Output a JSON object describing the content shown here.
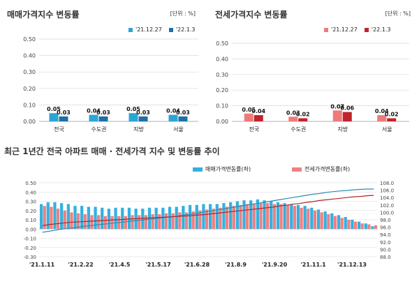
{
  "panels": {
    "sale": {
      "title": "매매가격지수 변동률",
      "unit": "[단위 : %]"
    },
    "jeonse": {
      "title": "전세가격지수 변동률",
      "unit": "[단위 : %]"
    },
    "trend": {
      "title": "최근 1년간 전국 아파트 매매 · 전세가격 지수 및 변동률 추이"
    }
  },
  "colors": {
    "sale_prev": "#2aa6d6",
    "sale_cur": "#1f6fa8",
    "jeonse_prev": "#f07a7a",
    "jeonse_cur": "#c0232a",
    "trend_sale_bar": "#33b1e0",
    "trend_jeonse_bar": "#f08080",
    "trend_sale_line": "#2a8cb0",
    "trend_jeonse_line": "#b02525",
    "grid": "#d8d8d8",
    "axis": "#999999",
    "text": "#222222"
  },
  "chart_data": [
    {
      "type": "bar",
      "categories": [
        "전국",
        "수도권",
        "지방",
        "서울"
      ],
      "series": [
        {
          "name": "'21.12.27",
          "values": [
            0.05,
            0.04,
            0.05,
            0.04
          ]
        },
        {
          "name": "'22.1.3",
          "values": [
            0.03,
            0.03,
            0.03,
            0.03
          ]
        }
      ],
      "value_labels": [
        [
          "0.05",
          "0.04",
          "0.05",
          "0.04"
        ],
        [
          "0.03",
          "0.03",
          "0.03",
          "0.03"
        ]
      ],
      "ylim": [
        0,
        0.5
      ],
      "yticks": [
        "0.00",
        "0.10",
        "0.20",
        "0.30",
        "0.40",
        "0.50"
      ]
    },
    {
      "type": "bar",
      "categories": [
        "전국",
        "수도권",
        "지방",
        "서울"
      ],
      "series": [
        {
          "name": "'21.12.27",
          "values": [
            0.05,
            0.03,
            0.07,
            0.04
          ]
        },
        {
          "name": "'22.1.3",
          "values": [
            0.04,
            0.02,
            0.06,
            0.02
          ]
        }
      ],
      "value_labels": [
        [
          "0.05",
          "0.03",
          "0.07",
          "0.04"
        ],
        [
          "0.04",
          "0.02",
          "0.06",
          "0.02"
        ]
      ],
      "ylim": [
        0,
        0.5
      ],
      "yticks": [
        "0.00",
        "0.10",
        "0.20",
        "0.30",
        "0.40",
        "0.50"
      ]
    },
    {
      "type": "bar",
      "x_ticks": [
        "'21.1.11",
        "'21.2.22",
        "'21.4.5",
        "'21.5.17",
        "'21.6.28",
        "'21.8.9",
        "'21.9.20",
        "'21.11.1",
        "'21.12.13"
      ],
      "series": [
        {
          "name": "매매가격변동률(좌)",
          "axis": "left",
          "values": [
            0.27,
            0.29,
            0.29,
            0.28,
            0.27,
            0.25,
            0.25,
            0.24,
            0.24,
            0.23,
            0.22,
            0.23,
            0.23,
            0.23,
            0.22,
            0.22,
            0.23,
            0.23,
            0.23,
            0.24,
            0.24,
            0.25,
            0.26,
            0.26,
            0.27,
            0.27,
            0.27,
            0.28,
            0.29,
            0.3,
            0.31,
            0.31,
            0.32,
            0.31,
            0.3,
            0.29,
            0.28,
            0.27,
            0.26,
            0.25,
            0.23,
            0.21,
            0.19,
            0.17,
            0.15,
            0.13,
            0.1,
            0.08,
            0.06,
            0.03
          ]
        },
        {
          "name": "전세가격변동률(좌)",
          "axis": "left",
          "values": [
            0.25,
            0.24,
            0.22,
            0.2,
            0.18,
            0.17,
            0.16,
            0.15,
            0.15,
            0.14,
            0.14,
            0.14,
            0.14,
            0.15,
            0.15,
            0.15,
            0.16,
            0.16,
            0.17,
            0.17,
            0.18,
            0.18,
            0.19,
            0.2,
            0.21,
            0.22,
            0.23,
            0.24,
            0.25,
            0.26,
            0.27,
            0.27,
            0.28,
            0.28,
            0.27,
            0.27,
            0.26,
            0.25,
            0.23,
            0.22,
            0.2,
            0.18,
            0.16,
            0.14,
            0.12,
            0.1,
            0.08,
            0.06,
            0.05,
            0.04
          ]
        },
        {
          "name": "sale_index",
          "axis": "right",
          "type": "line",
          "values": [
            94.6,
            94.9,
            95.2,
            95.5,
            95.7,
            95.9,
            96.2,
            96.4,
            96.6,
            96.8,
            97.0,
            97.2,
            97.4,
            97.6,
            97.8,
            98.0,
            98.2,
            98.4,
            98.6,
            98.8,
            99.0,
            99.3,
            99.5,
            99.8,
            100.1,
            100.4,
            100.7,
            101.0,
            101.3,
            101.6,
            101.9,
            102.2,
            102.5,
            102.8,
            103.1,
            103.4,
            103.7,
            104.0,
            104.3,
            104.6,
            104.9,
            105.1,
            105.4,
            105.6,
            105.8,
            105.9,
            106.1,
            106.2,
            106.3,
            106.3
          ]
        },
        {
          "name": "jeonse_index",
          "axis": "right",
          "type": "line",
          "values": [
            96.4,
            96.7,
            96.9,
            97.1,
            97.3,
            97.4,
            97.5,
            97.6,
            97.7,
            97.8,
            97.9,
            98.0,
            98.1,
            98.2,
            98.3,
            98.4,
            98.5,
            98.6,
            98.7,
            98.8,
            98.9,
            99.0,
            99.1,
            99.3,
            99.4,
            99.6,
            99.8,
            100.0,
            100.2,
            100.4,
            100.6,
            100.8,
            101.0,
            101.2,
            101.4,
            101.7,
            101.9,
            102.2,
            102.4,
            102.7,
            102.9,
            103.2,
            103.4,
            103.6,
            103.8,
            104.0,
            104.2,
            104.3,
            104.5,
            104.6
          ]
        }
      ],
      "ylim_left": [
        -0.3,
        0.5
      ],
      "yticks_left": [
        "0.50",
        "0.40",
        "0.30",
        "0.20",
        "0.10",
        "0.00",
        "-0.10",
        "-0.20",
        "-0.30"
      ],
      "ylim_right": [
        88.0,
        108.0
      ],
      "yticks_right": [
        "108.0",
        "106.0",
        "104.0",
        "102.0",
        "100.0",
        "98.0",
        "96.0",
        "94.0",
        "92.0",
        "90.0",
        "88.0"
      ]
    }
  ]
}
